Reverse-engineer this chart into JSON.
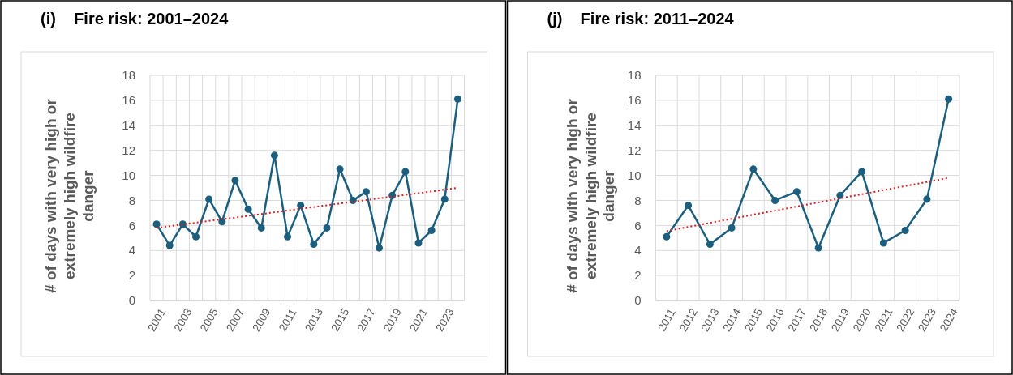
{
  "chart_data": [
    {
      "type": "line",
      "title": "(i)    Fire risk: 2001–2024",
      "ylabel": "# of days with very high or extremely high wildfire danger",
      "categories": [
        "2001",
        null,
        "2003",
        null,
        "2005",
        null,
        "2007",
        null,
        "2009",
        null,
        "2011",
        null,
        "2013",
        null,
        "2015",
        null,
        "2017",
        null,
        "2019",
        null,
        "2021",
        null,
        "2023",
        null
      ],
      "series": [
        {
          "color": "#1b5e7e",
          "values": [
            6.1,
            4.4,
            6.1,
            5.1,
            8.1,
            6.3,
            9.6,
            7.3,
            5.8,
            11.6,
            5.1,
            7.6,
            4.5,
            5.8,
            10.5,
            8.0,
            8.7,
            4.2,
            8.4,
            10.3,
            4.6,
            5.6,
            8.1,
            16.1
          ]
        },
        {
          "type": "line",
          "color": "#d42020",
          "marker": "none",
          "line_style": "dotted",
          "values": [
            5.8,
            5.94,
            6.08,
            6.22,
            6.36,
            6.5,
            6.63,
            6.77,
            6.91,
            7.05,
            7.19,
            7.33,
            7.47,
            7.61,
            7.75,
            7.89,
            8.03,
            8.17,
            8.3,
            8.44,
            8.58,
            8.72,
            8.86,
            9.0
          ]
        }
      ],
      "ylim": [
        0,
        18
      ],
      "yticks": [
        0,
        2,
        4,
        6,
        8,
        10,
        12,
        14,
        16,
        18
      ],
      "grid": true,
      "marker": "circle"
    },
    {
      "type": "line",
      "title": "(j)    Fire risk: 2011–2024",
      "ylabel": "# of days with very high or extremely high wildfire danger",
      "categories": [
        "2011",
        "2012",
        "2013",
        "2014",
        "2015",
        "2016",
        "2017",
        "2018",
        "2019",
        "2020",
        "2021",
        "2022",
        "2023",
        "2024"
      ],
      "series": [
        {
          "color": "#1b5e7e",
          "values": [
            5.1,
            7.6,
            4.5,
            5.8,
            10.5,
            8.0,
            8.7,
            4.2,
            8.4,
            10.3,
            4.6,
            5.6,
            8.1,
            16.1
          ]
        },
        {
          "type": "line",
          "color": "#d42020",
          "marker": "none",
          "line_style": "dotted",
          "values": [
            5.55,
            5.88,
            6.2,
            6.53,
            6.86,
            7.18,
            7.51,
            7.84,
            8.17,
            8.49,
            8.82,
            9.15,
            9.47,
            9.8
          ]
        }
      ],
      "ylim": [
        0,
        18
      ],
      "yticks": [
        0,
        2,
        4,
        6,
        8,
        10,
        12,
        14,
        16,
        18
      ],
      "grid": true,
      "marker": "circle"
    }
  ]
}
